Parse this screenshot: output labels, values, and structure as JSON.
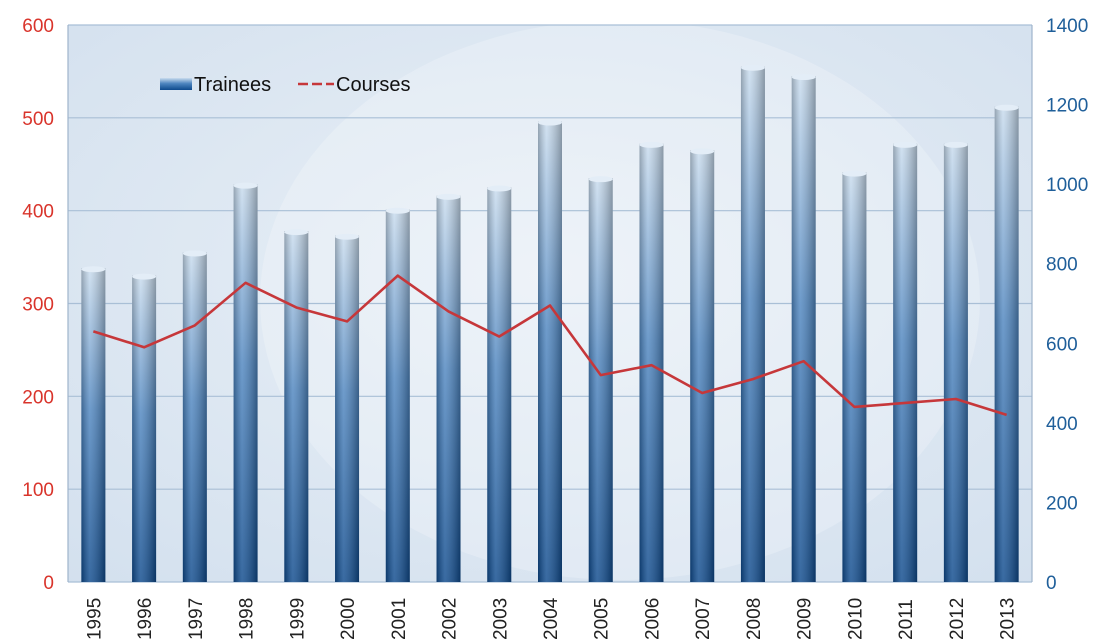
{
  "chart_data": {
    "type": "bar",
    "categories": [
      "1995",
      "1996",
      "1997",
      "1998",
      "1999",
      "2000",
      "2001",
      "2002",
      "2003",
      "2004",
      "2005",
      "2006",
      "2007",
      "2008",
      "2009",
      "2010",
      "2011",
      "2012",
      "2013"
    ],
    "series": [
      {
        "name": "Trainees",
        "type": "bar",
        "axis": "left",
        "values": [
          338,
          330,
          355,
          428,
          378,
          373,
          401,
          416,
          425,
          496,
          435,
          472,
          465,
          555,
          545,
          441,
          472,
          472,
          512
        ]
      },
      {
        "name": "Courses",
        "type": "line",
        "axis": "right",
        "values": [
          630,
          590,
          645,
          752,
          690,
          655,
          770,
          680,
          617,
          695,
          520,
          545,
          475,
          510,
          555,
          440,
          450,
          460,
          420
        ]
      }
    ],
    "y_left": {
      "ylim": [
        0,
        600
      ],
      "ticks": [
        0,
        100,
        200,
        300,
        400,
        500,
        600
      ]
    },
    "y_right": {
      "ylim": [
        0,
        1400
      ],
      "ticks": [
        0,
        200,
        400,
        600,
        800,
        1000,
        1200,
        1400
      ]
    },
    "legend_position": "top-left",
    "grid": true,
    "colors": {
      "bar_top": "#c9dcee",
      "bar_mid": "#4f86c0",
      "bar_bottom": "#0e4a8d",
      "line": "#c6373a",
      "left_axis_text": "#d9342b",
      "right_axis_text": "#1f5f9a",
      "plot_background": "#dbe6f2",
      "grid": "#a9bfd6"
    }
  }
}
